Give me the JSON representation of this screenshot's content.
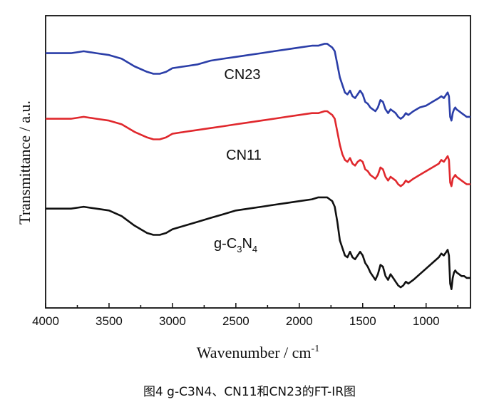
{
  "chart_data": {
    "type": "line",
    "xlabel": "Wavenumber / cm",
    "xlabel_superscript": "-1",
    "ylabel": "Transmittance / a.u.",
    "x_reversed": true,
    "xlim": [
      4000,
      650
    ],
    "x_ticks": [
      "4000",
      "3500",
      "3000",
      "2500",
      "2000",
      "1500",
      "1000"
    ],
    "y_ticks_shown": false,
    "colors": {
      "CN23": "#2b3ea8",
      "CN11": "#e0282d",
      "g-C3N4": "#111111"
    },
    "series": [
      {
        "name": "CN23",
        "x": [
          4000,
          3900,
          3800,
          3700,
          3600,
          3500,
          3400,
          3300,
          3200,
          3150,
          3100,
          3050,
          3000,
          2900,
          2800,
          2700,
          2600,
          2500,
          2400,
          2300,
          2200,
          2100,
          2000,
          1900,
          1850,
          1800,
          1780,
          1760,
          1740,
          1720,
          1700,
          1680,
          1660,
          1640,
          1620,
          1600,
          1580,
          1560,
          1540,
          1520,
          1500,
          1480,
          1460,
          1440,
          1420,
          1400,
          1380,
          1360,
          1340,
          1320,
          1300,
          1280,
          1260,
          1240,
          1220,
          1200,
          1180,
          1160,
          1140,
          1100,
          1050,
          1000,
          950,
          900,
          880,
          860,
          840,
          830,
          820,
          810,
          800,
          790,
          780,
          770,
          760,
          740,
          720,
          700,
          680,
          650
        ],
        "y": [
          8.8,
          8.8,
          8.8,
          8.9,
          8.8,
          8.7,
          8.5,
          8.1,
          7.8,
          7.7,
          7.7,
          7.8,
          8.0,
          8.1,
          8.2,
          8.4,
          8.5,
          8.6,
          8.7,
          8.8,
          8.9,
          9.0,
          9.1,
          9.2,
          9.2,
          9.3,
          9.3,
          9.2,
          9.1,
          8.9,
          8.2,
          7.5,
          7.1,
          6.7,
          6.6,
          6.8,
          6.5,
          6.4,
          6.6,
          6.8,
          6.6,
          6.2,
          6.1,
          5.9,
          5.8,
          5.7,
          5.9,
          6.3,
          6.2,
          5.8,
          5.6,
          5.8,
          5.7,
          5.6,
          5.4,
          5.3,
          5.4,
          5.6,
          5.5,
          5.7,
          5.9,
          6.0,
          6.2,
          6.4,
          6.5,
          6.4,
          6.6,
          6.7,
          6.5,
          5.4,
          5.2,
          5.6,
          5.8,
          5.9,
          5.8,
          5.7,
          5.6,
          5.5,
          5.4,
          5.4
        ]
      },
      {
        "name": "CN11",
        "x": [
          4000,
          3900,
          3800,
          3700,
          3600,
          3500,
          3400,
          3300,
          3200,
          3150,
          3100,
          3050,
          3000,
          2900,
          2800,
          2700,
          2600,
          2500,
          2400,
          2300,
          2200,
          2100,
          2000,
          1900,
          1850,
          1800,
          1780,
          1760,
          1740,
          1720,
          1700,
          1680,
          1660,
          1640,
          1620,
          1600,
          1580,
          1560,
          1540,
          1520,
          1500,
          1480,
          1460,
          1440,
          1420,
          1400,
          1380,
          1360,
          1340,
          1320,
          1300,
          1280,
          1260,
          1240,
          1220,
          1200,
          1180,
          1160,
          1140,
          1100,
          1050,
          1000,
          950,
          900,
          880,
          860,
          840,
          830,
          820,
          810,
          800,
          790,
          780,
          770,
          760,
          740,
          720,
          700,
          680,
          650
        ],
        "y": [
          5.3,
          5.3,
          5.3,
          5.4,
          5.3,
          5.2,
          5.0,
          4.6,
          4.3,
          4.2,
          4.2,
          4.3,
          4.5,
          4.6,
          4.7,
          4.8,
          4.9,
          5.0,
          5.1,
          5.2,
          5.3,
          5.4,
          5.5,
          5.6,
          5.6,
          5.7,
          5.7,
          5.6,
          5.5,
          5.3,
          4.6,
          3.9,
          3.4,
          3.1,
          3.0,
          3.2,
          2.9,
          2.8,
          3.0,
          3.1,
          3.0,
          2.6,
          2.5,
          2.3,
          2.2,
          2.1,
          2.3,
          2.7,
          2.6,
          2.2,
          2.0,
          2.2,
          2.1,
          2.0,
          1.8,
          1.7,
          1.8,
          2.0,
          1.9,
          2.1,
          2.3,
          2.5,
          2.7,
          2.9,
          3.1,
          3.0,
          3.2,
          3.3,
          3.1,
          1.9,
          1.7,
          2.1,
          2.2,
          2.3,
          2.2,
          2.1,
          2.0,
          1.9,
          1.8,
          1.8
        ]
      },
      {
        "name": "g-C3N4",
        "x": [
          4000,
          3900,
          3800,
          3700,
          3600,
          3500,
          3400,
          3300,
          3200,
          3150,
          3100,
          3050,
          3000,
          2900,
          2800,
          2700,
          2600,
          2500,
          2400,
          2300,
          2200,
          2100,
          2000,
          1900,
          1850,
          1800,
          1780,
          1760,
          1740,
          1720,
          1700,
          1680,
          1660,
          1640,
          1620,
          1600,
          1580,
          1560,
          1540,
          1520,
          1500,
          1480,
          1460,
          1440,
          1420,
          1400,
          1380,
          1360,
          1340,
          1320,
          1300,
          1280,
          1260,
          1240,
          1220,
          1200,
          1180,
          1160,
          1140,
          1100,
          1050,
          1000,
          950,
          900,
          880,
          860,
          840,
          830,
          820,
          810,
          800,
          790,
          780,
          770,
          760,
          740,
          720,
          700,
          680,
          650
        ],
        "y": [
          0.5,
          0.5,
          0.5,
          0.6,
          0.5,
          0.4,
          0.1,
          -0.4,
          -0.8,
          -0.9,
          -0.9,
          -0.8,
          -0.6,
          -0.4,
          -0.2,
          0.0,
          0.2,
          0.4,
          0.5,
          0.6,
          0.7,
          0.8,
          0.9,
          1.0,
          1.1,
          1.1,
          1.1,
          1.0,
          0.9,
          0.6,
          -0.2,
          -1.2,
          -1.6,
          -2.0,
          -2.1,
          -1.8,
          -2.1,
          -2.2,
          -2.0,
          -1.8,
          -2.0,
          -2.4,
          -2.6,
          -2.9,
          -3.1,
          -3.3,
          -3.0,
          -2.5,
          -2.6,
          -3.1,
          -3.3,
          -3.0,
          -3.2,
          -3.4,
          -3.6,
          -3.7,
          -3.6,
          -3.4,
          -3.5,
          -3.3,
          -3.0,
          -2.7,
          -2.4,
          -2.1,
          -1.9,
          -2.0,
          -1.8,
          -1.7,
          -2.0,
          -3.5,
          -3.8,
          -3.2,
          -2.9,
          -2.8,
          -2.9,
          -3.0,
          -3.1,
          -3.1,
          -3.2,
          -3.2
        ]
      }
    ],
    "ylim": [
      -4.8,
      10.8
    ],
    "annotations": [
      {
        "series": "CN23",
        "text": "CN23"
      },
      {
        "series": "CN11",
        "text": "CN11"
      },
      {
        "series": "g-C3N4",
        "text_main": "g-C",
        "sub1": "3",
        "text_mid": "N",
        "sub2": "4"
      }
    ]
  },
  "caption": "图4  g-C3N4、CN11和CN23的FT-IR图"
}
